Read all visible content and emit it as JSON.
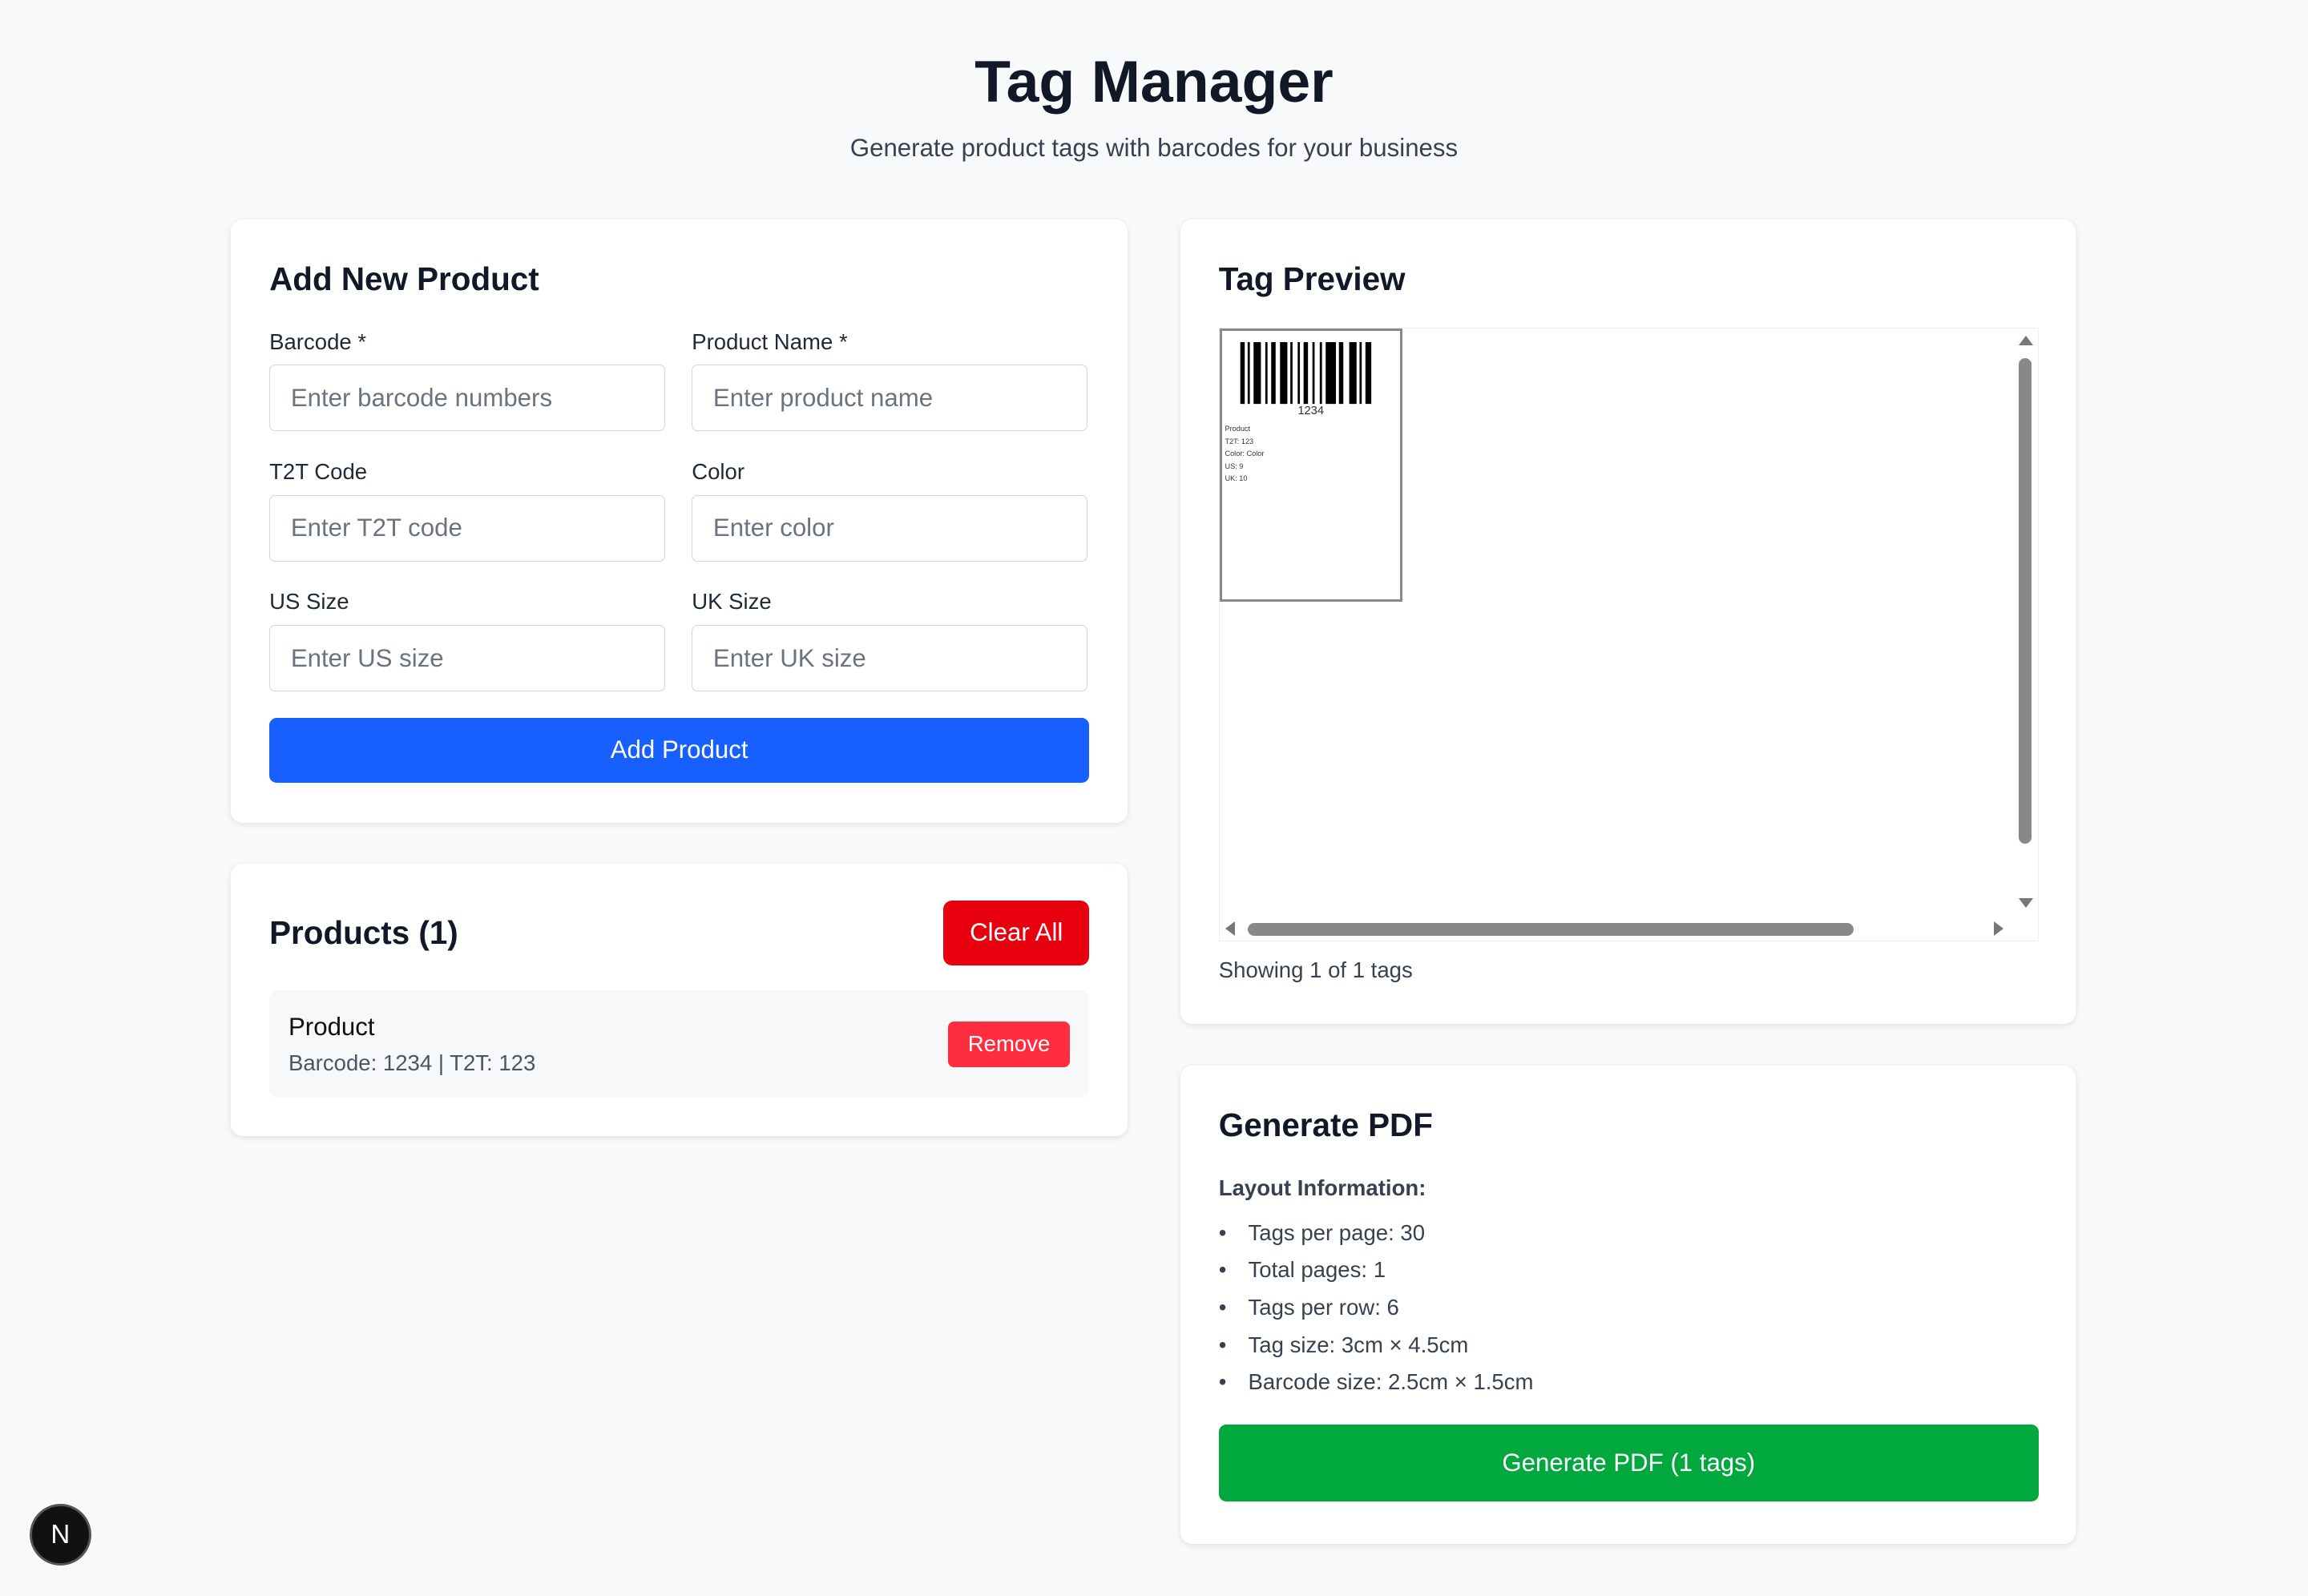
{
  "header": {
    "title": "Tag Manager",
    "subtitle": "Generate product tags with barcodes for your business"
  },
  "add_product": {
    "title": "Add New Product",
    "fields": [
      {
        "label": "Barcode *",
        "placeholder": "Enter barcode numbers",
        "value": ""
      },
      {
        "label": "Product Name *",
        "placeholder": "Enter product name",
        "value": ""
      },
      {
        "label": "T2T Code",
        "placeholder": "Enter T2T code",
        "value": ""
      },
      {
        "label": "Color",
        "placeholder": "Enter color",
        "value": ""
      },
      {
        "label": "US Size",
        "placeholder": "Enter US size",
        "value": ""
      },
      {
        "label": "UK Size",
        "placeholder": "Enter UK size",
        "value": ""
      }
    ],
    "button": "Add Product"
  },
  "products": {
    "title": "Products (1)",
    "clear_all": "Clear All",
    "items": [
      {
        "name": "Product",
        "details": "Barcode: 1234 | T2T: 123",
        "remove": "Remove"
      }
    ]
  },
  "preview": {
    "title": "Tag Preview",
    "status": "Showing 1 of 1 tags",
    "tag": {
      "barcode": "1234",
      "lines": [
        "Product",
        "T2T: 123",
        "Color: Color",
        "US: 9",
        "UK: 10"
      ]
    }
  },
  "pdf": {
    "title": "Generate PDF",
    "layout_heading": "Layout Information:",
    "info": [
      "Tags per page: 30",
      "Total pages: 1",
      "Tags per row: 6",
      "Tag size: 3cm × 4.5cm",
      "Barcode size: 2.5cm × 1.5cm"
    ],
    "button": "Generate PDF (1 tags)"
  },
  "colors": {
    "primary": "#1760ff",
    "danger": "#e8000f",
    "remove": "#ff2d3d",
    "success": "#00a83e"
  },
  "dev_badge": "N"
}
